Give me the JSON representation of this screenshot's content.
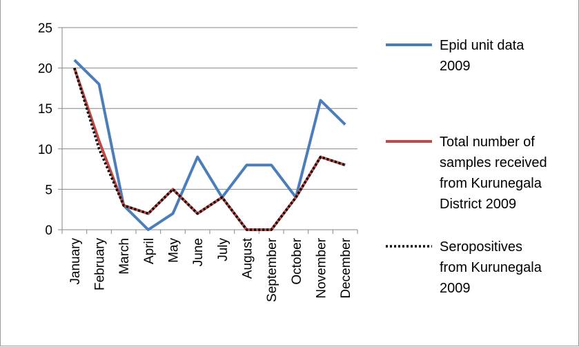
{
  "chart_data": {
    "type": "line",
    "categories": [
      "January",
      "February",
      "March",
      "April",
      "May",
      "June",
      "July",
      "August",
      "September",
      "October",
      "November",
      "December"
    ],
    "ylim": [
      0,
      25
    ],
    "yticks": [
      0,
      5,
      10,
      15,
      20,
      25
    ],
    "grid": true,
    "legend_position": "right",
    "series": [
      {
        "name": "Epid unit data 2009",
        "legend_lines": [
          "Epid unit data",
          "2009"
        ],
        "color": "#4a7ebb",
        "style": "solid",
        "values": [
          21,
          18,
          3,
          0,
          2,
          9,
          4,
          8,
          8,
          4,
          16,
          13
        ]
      },
      {
        "name": "Total number of samples received from Kurunegala District 2009",
        "legend_lines": [
          "Total number of",
          "samples received",
          "from Kurunegala",
          "District 2009"
        ],
        "color": "#be4b48",
        "style": "solid",
        "values": [
          20,
          11,
          3,
          2,
          5,
          2,
          4,
          0,
          0,
          4,
          9,
          8
        ]
      },
      {
        "name": "Seropositives from Kurunegala 2009",
        "legend_lines": [
          "Seropositives",
          "from Kurunegala",
          "2009"
        ],
        "color": "#000000",
        "style": "dotted",
        "values": [
          20,
          10,
          3,
          2,
          5,
          2,
          4,
          0,
          0,
          4,
          9,
          8
        ]
      }
    ]
  }
}
